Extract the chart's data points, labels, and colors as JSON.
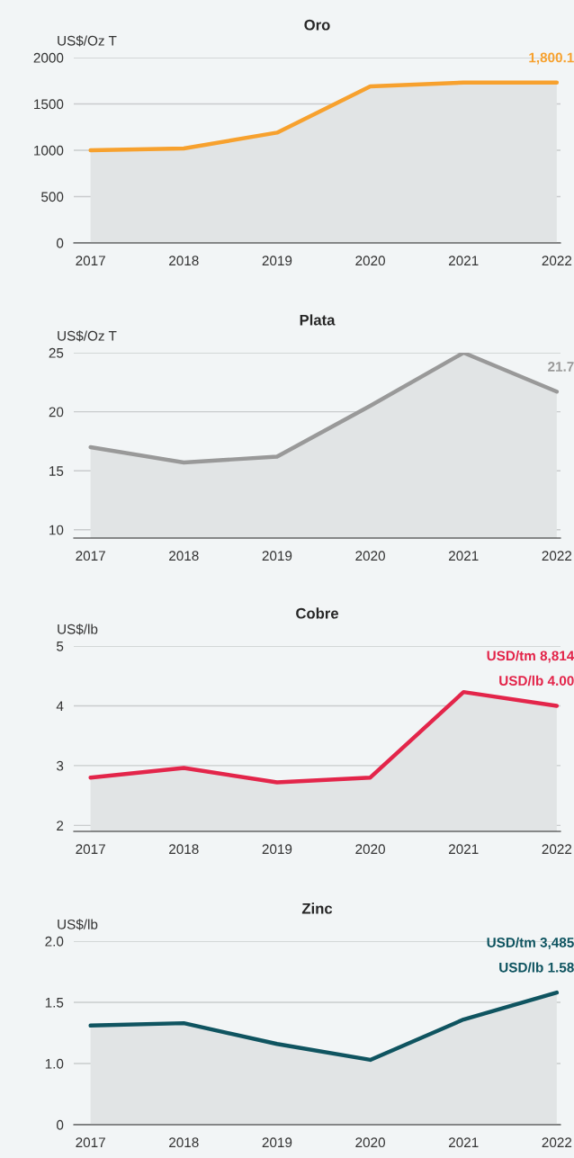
{
  "chart_data": [
    {
      "type": "area",
      "title": "Oro",
      "ylabel": "US$/Oz T",
      "categories": [
        "2017",
        "2018",
        "2019",
        "2020",
        "2021",
        "2022"
      ],
      "series": [
        {
          "color": "#f7a12e",
          "values": [
            1000,
            1020,
            1190,
            1690,
            1730,
            1730
          ]
        }
      ],
      "ylim": [
        0,
        2000
      ],
      "yticks": [
        0,
        500,
        1000,
        1500,
        2000
      ],
      "grid": "y",
      "annotations": [
        {
          "text": "1,800.1",
          "x": "2022",
          "y": 1730
        }
      ]
    },
    {
      "type": "area",
      "title": "Plata",
      "ylabel": "US$/Oz T",
      "categories": [
        "2017",
        "2018",
        "2019",
        "2020",
        "2021",
        "2022"
      ],
      "series": [
        {
          "color": "#999999",
          "values": [
            17.0,
            15.7,
            16.2,
            20.5,
            25.0,
            21.7
          ]
        }
      ],
      "ylim": [
        9.3,
        25
      ],
      "yticks": [
        10,
        15,
        20,
        25
      ],
      "grid": "y",
      "annotations": [
        {
          "text": "21.7",
          "x": "2022",
          "y": 21.7
        }
      ]
    },
    {
      "type": "area",
      "title": "Cobre",
      "ylabel": "US$/lb",
      "categories": [
        "2017",
        "2018",
        "2019",
        "2020",
        "2021",
        "2022"
      ],
      "series": [
        {
          "color": "#e3254a",
          "values": [
            2.8,
            2.96,
            2.72,
            2.8,
            4.23,
            4.0
          ]
        }
      ],
      "ylim": [
        1.9,
        5
      ],
      "yticks": [
        2,
        3,
        4,
        5
      ],
      "grid": "y",
      "annotations": [
        "USD/tm 8,814",
        {
          "text": "USD/lb 4.00",
          "x": "2022",
          "y": 4.0
        }
      ]
    },
    {
      "type": "area",
      "title": "Zinc",
      "ylabel": "US$/lb",
      "categories": [
        "2017",
        "2018",
        "2019",
        "2020",
        "2021",
        "2022"
      ],
      "series": [
        {
          "color": "#0f5460",
          "values": [
            1.31,
            1.33,
            1.16,
            1.03,
            1.36,
            1.58
          ]
        }
      ],
      "ylim": [
        0.5,
        2.0
      ],
      "yticks": [
        {
          "value": 0.5,
          "label": "0"
        },
        {
          "value": 1.0,
          "label": "1.0"
        },
        {
          "value": 1.5,
          "label": "1.5"
        },
        {
          "value": 2.0,
          "label": "2.0"
        }
      ],
      "grid": "y",
      "annotations": [
        "USD/tm 3,485",
        {
          "text": "USD/lb 1.58",
          "x": "2022",
          "y": 1.58
        }
      ]
    }
  ]
}
